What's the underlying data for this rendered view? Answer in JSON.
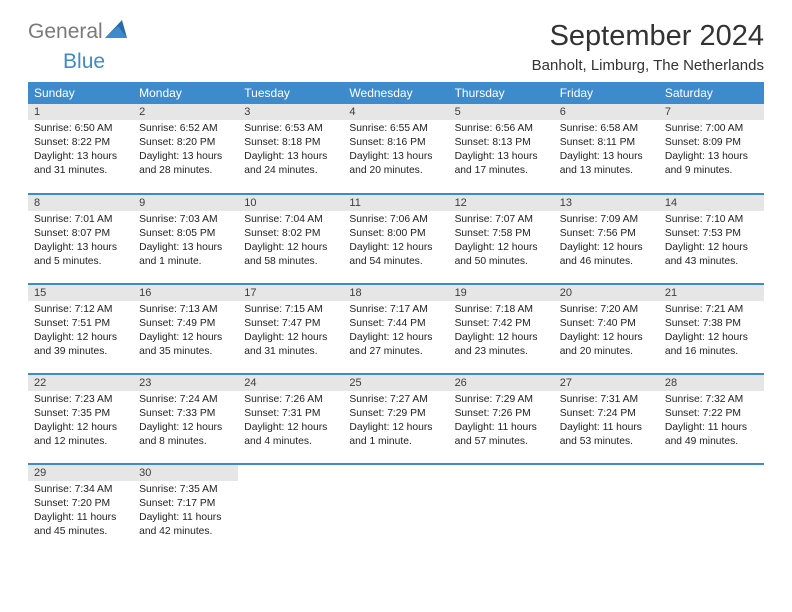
{
  "brand": {
    "part1": "General",
    "part2": "Blue"
  },
  "title": "September 2024",
  "location": "Banholt, Limburg, The Netherlands",
  "colors": {
    "header_bg": "#3d8bcd",
    "header_fg": "#ffffff",
    "band_bg": "#e6e6e6",
    "text": "#222222",
    "rule": "#3d8bcd"
  },
  "weekdays": [
    "Sunday",
    "Monday",
    "Tuesday",
    "Wednesday",
    "Thursday",
    "Friday",
    "Saturday"
  ],
  "days": [
    {
      "n": "1",
      "sr": "Sunrise: 6:50 AM",
      "ss": "Sunset: 8:22 PM",
      "d1": "Daylight: 13 hours",
      "d2": "and 31 minutes."
    },
    {
      "n": "2",
      "sr": "Sunrise: 6:52 AM",
      "ss": "Sunset: 8:20 PM",
      "d1": "Daylight: 13 hours",
      "d2": "and 28 minutes."
    },
    {
      "n": "3",
      "sr": "Sunrise: 6:53 AM",
      "ss": "Sunset: 8:18 PM",
      "d1": "Daylight: 13 hours",
      "d2": "and 24 minutes."
    },
    {
      "n": "4",
      "sr": "Sunrise: 6:55 AM",
      "ss": "Sunset: 8:16 PM",
      "d1": "Daylight: 13 hours",
      "d2": "and 20 minutes."
    },
    {
      "n": "5",
      "sr": "Sunrise: 6:56 AM",
      "ss": "Sunset: 8:13 PM",
      "d1": "Daylight: 13 hours",
      "d2": "and 17 minutes."
    },
    {
      "n": "6",
      "sr": "Sunrise: 6:58 AM",
      "ss": "Sunset: 8:11 PM",
      "d1": "Daylight: 13 hours",
      "d2": "and 13 minutes."
    },
    {
      "n": "7",
      "sr": "Sunrise: 7:00 AM",
      "ss": "Sunset: 8:09 PM",
      "d1": "Daylight: 13 hours",
      "d2": "and 9 minutes."
    },
    {
      "n": "8",
      "sr": "Sunrise: 7:01 AM",
      "ss": "Sunset: 8:07 PM",
      "d1": "Daylight: 13 hours",
      "d2": "and 5 minutes."
    },
    {
      "n": "9",
      "sr": "Sunrise: 7:03 AM",
      "ss": "Sunset: 8:05 PM",
      "d1": "Daylight: 13 hours",
      "d2": "and 1 minute."
    },
    {
      "n": "10",
      "sr": "Sunrise: 7:04 AM",
      "ss": "Sunset: 8:02 PM",
      "d1": "Daylight: 12 hours",
      "d2": "and 58 minutes."
    },
    {
      "n": "11",
      "sr": "Sunrise: 7:06 AM",
      "ss": "Sunset: 8:00 PM",
      "d1": "Daylight: 12 hours",
      "d2": "and 54 minutes."
    },
    {
      "n": "12",
      "sr": "Sunrise: 7:07 AM",
      "ss": "Sunset: 7:58 PM",
      "d1": "Daylight: 12 hours",
      "d2": "and 50 minutes."
    },
    {
      "n": "13",
      "sr": "Sunrise: 7:09 AM",
      "ss": "Sunset: 7:56 PM",
      "d1": "Daylight: 12 hours",
      "d2": "and 46 minutes."
    },
    {
      "n": "14",
      "sr": "Sunrise: 7:10 AM",
      "ss": "Sunset: 7:53 PM",
      "d1": "Daylight: 12 hours",
      "d2": "and 43 minutes."
    },
    {
      "n": "15",
      "sr": "Sunrise: 7:12 AM",
      "ss": "Sunset: 7:51 PM",
      "d1": "Daylight: 12 hours",
      "d2": "and 39 minutes."
    },
    {
      "n": "16",
      "sr": "Sunrise: 7:13 AM",
      "ss": "Sunset: 7:49 PM",
      "d1": "Daylight: 12 hours",
      "d2": "and 35 minutes."
    },
    {
      "n": "17",
      "sr": "Sunrise: 7:15 AM",
      "ss": "Sunset: 7:47 PM",
      "d1": "Daylight: 12 hours",
      "d2": "and 31 minutes."
    },
    {
      "n": "18",
      "sr": "Sunrise: 7:17 AM",
      "ss": "Sunset: 7:44 PM",
      "d1": "Daylight: 12 hours",
      "d2": "and 27 minutes."
    },
    {
      "n": "19",
      "sr": "Sunrise: 7:18 AM",
      "ss": "Sunset: 7:42 PM",
      "d1": "Daylight: 12 hours",
      "d2": "and 23 minutes."
    },
    {
      "n": "20",
      "sr": "Sunrise: 7:20 AM",
      "ss": "Sunset: 7:40 PM",
      "d1": "Daylight: 12 hours",
      "d2": "and 20 minutes."
    },
    {
      "n": "21",
      "sr": "Sunrise: 7:21 AM",
      "ss": "Sunset: 7:38 PM",
      "d1": "Daylight: 12 hours",
      "d2": "and 16 minutes."
    },
    {
      "n": "22",
      "sr": "Sunrise: 7:23 AM",
      "ss": "Sunset: 7:35 PM",
      "d1": "Daylight: 12 hours",
      "d2": "and 12 minutes."
    },
    {
      "n": "23",
      "sr": "Sunrise: 7:24 AM",
      "ss": "Sunset: 7:33 PM",
      "d1": "Daylight: 12 hours",
      "d2": "and 8 minutes."
    },
    {
      "n": "24",
      "sr": "Sunrise: 7:26 AM",
      "ss": "Sunset: 7:31 PM",
      "d1": "Daylight: 12 hours",
      "d2": "and 4 minutes."
    },
    {
      "n": "25",
      "sr": "Sunrise: 7:27 AM",
      "ss": "Sunset: 7:29 PM",
      "d1": "Daylight: 12 hours",
      "d2": "and 1 minute."
    },
    {
      "n": "26",
      "sr": "Sunrise: 7:29 AM",
      "ss": "Sunset: 7:26 PM",
      "d1": "Daylight: 11 hours",
      "d2": "and 57 minutes."
    },
    {
      "n": "27",
      "sr": "Sunrise: 7:31 AM",
      "ss": "Sunset: 7:24 PM",
      "d1": "Daylight: 11 hours",
      "d2": "and 53 minutes."
    },
    {
      "n": "28",
      "sr": "Sunrise: 7:32 AM",
      "ss": "Sunset: 7:22 PM",
      "d1": "Daylight: 11 hours",
      "d2": "and 49 minutes."
    },
    {
      "n": "29",
      "sr": "Sunrise: 7:34 AM",
      "ss": "Sunset: 7:20 PM",
      "d1": "Daylight: 11 hours",
      "d2": "and 45 minutes."
    },
    {
      "n": "30",
      "sr": "Sunrise: 7:35 AM",
      "ss": "Sunset: 7:17 PM",
      "d1": "Daylight: 11 hours",
      "d2": "and 42 minutes."
    }
  ]
}
